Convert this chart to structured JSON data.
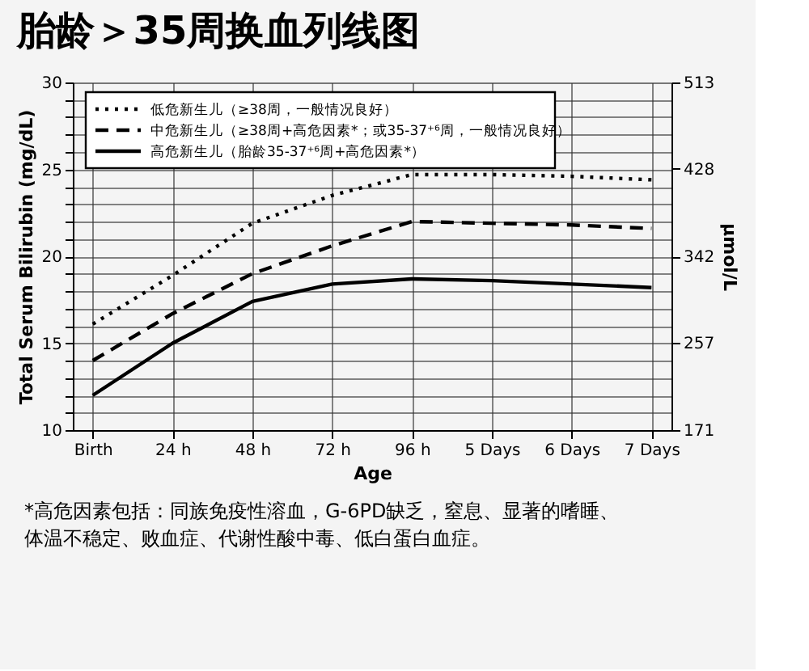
{
  "chart_data": {
    "type": "line",
    "title": "胎龄＞35周换血列线图",
    "xlabel": "Age",
    "ylabel": "Total Serum Bilirubin (mg/dL)",
    "y2label": "μmol/L",
    "categories": [
      "Birth",
      "24 h",
      "48 h",
      "72 h",
      "96 h",
      "5 Days",
      "6 Days",
      "7 Days"
    ],
    "ylim": [
      10,
      30
    ],
    "yticks": [
      10,
      {
        "value": 11,
        "label": null
      },
      {
        "value": 12,
        "label": null
      },
      {
        "value": 13,
        "label": null
      },
      {
        "value": 14,
        "label": null
      },
      15,
      {
        "value": 16,
        "label": null
      },
      {
        "value": 17,
        "label": null
      },
      {
        "value": 18,
        "label": null
      },
      {
        "value": 19,
        "label": null
      },
      20,
      {
        "value": 21,
        "label": null
      },
      {
        "value": 22,
        "label": null
      },
      {
        "value": 23,
        "label": null
      },
      {
        "value": 24,
        "label": null
      },
      25,
      {
        "value": 26,
        "label": null
      },
      {
        "value": 27,
        "label": null
      },
      {
        "value": 28,
        "label": null
      },
      {
        "value": 29,
        "label": null
      },
      30
    ],
    "y2lim": [
      171,
      513
    ],
    "y2ticks": [
      171,
      257,
      342,
      428,
      513
    ],
    "grid": true,
    "legend": "top left",
    "marker": "none",
    "series": [
      {
        "name": "低危新生儿（≥38周，一般情况良好）",
        "color": "#000000",
        "line_style": "dotted",
        "values": [
          16.1,
          18.9,
          21.9,
          23.5,
          24.7,
          24.7,
          24.6,
          24.4
        ]
      },
      {
        "name": "中危新生儿（≥38周+高危因素*；或35-37⁺⁶周，一般情况良好）",
        "color": "#000000",
        "line_style": "dashed",
        "values": [
          14,
          16.7,
          19,
          20.6,
          22,
          21.9,
          21.8,
          21.6
        ]
      },
      {
        "name": "高危新生儿（胎龄35-37⁺⁶周+高危因素*）",
        "color": "#000000",
        "line_style": "solid",
        "values": [
          12,
          15,
          17.4,
          18.4,
          18.7,
          18.6,
          18.4,
          18.2
        ]
      }
    ],
    "annotations": [
      "*高危因素包括：同族免疫性溶血，G-6PD缺乏，窒息、显著的嗜睡、体温不稳定、败血症、代谢性酸中毒、低白蛋白血症。"
    ]
  }
}
